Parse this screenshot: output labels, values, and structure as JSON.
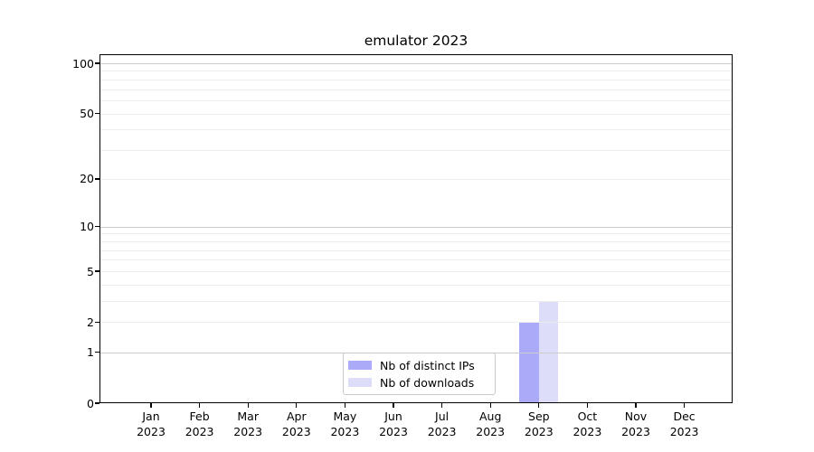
{
  "title": "emulator 2023",
  "legend": {
    "items": [
      {
        "label": "Nb of distinct IPs",
        "color": "#aaaaf8"
      },
      {
        "label": "Nb of downloads",
        "color": "#ddddf9"
      }
    ]
  },
  "colors": {
    "major_grid": "#cccccc",
    "minor_grid": "#ececec",
    "spine": "#000000",
    "background": "#ffffff",
    "bar_distinct_ips": "#aaaaf8",
    "bar_downloads": "#ddddf9"
  },
  "chart_data": {
    "type": "bar",
    "title": "emulator 2023",
    "categories": [
      "Jan 2023",
      "Feb 2023",
      "Mar 2023",
      "Apr 2023",
      "May 2023",
      "Jun 2023",
      "Jul 2023",
      "Aug 2023",
      "Sep 2023",
      "Oct 2023",
      "Nov 2023",
      "Dec 2023"
    ],
    "series": [
      {
        "name": "Nb of distinct IPs",
        "color": "#aaaaf8",
        "values": [
          0,
          0,
          0,
          0,
          0,
          0,
          0,
          0,
          2,
          0,
          0,
          0
        ]
      },
      {
        "name": "Nb of downloads",
        "color": "#ddddf9",
        "values": [
          0,
          0,
          0,
          0,
          0,
          0,
          0,
          0,
          3,
          0,
          0,
          0
        ]
      }
    ],
    "xlabel": "",
    "ylabel": "",
    "yscale": "log1p",
    "ylim": [
      0,
      113
    ],
    "yticks": [
      0,
      1,
      2,
      5,
      10,
      20,
      50,
      100
    ],
    "major_gridlines": [
      1,
      10,
      100
    ],
    "minor_gridlines": [
      2,
      3,
      4,
      5,
      6,
      7,
      8,
      9,
      20,
      30,
      40,
      50,
      60,
      70,
      80,
      90
    ],
    "grid": true,
    "grid_above_bars": true,
    "legend_position": "lower center"
  }
}
